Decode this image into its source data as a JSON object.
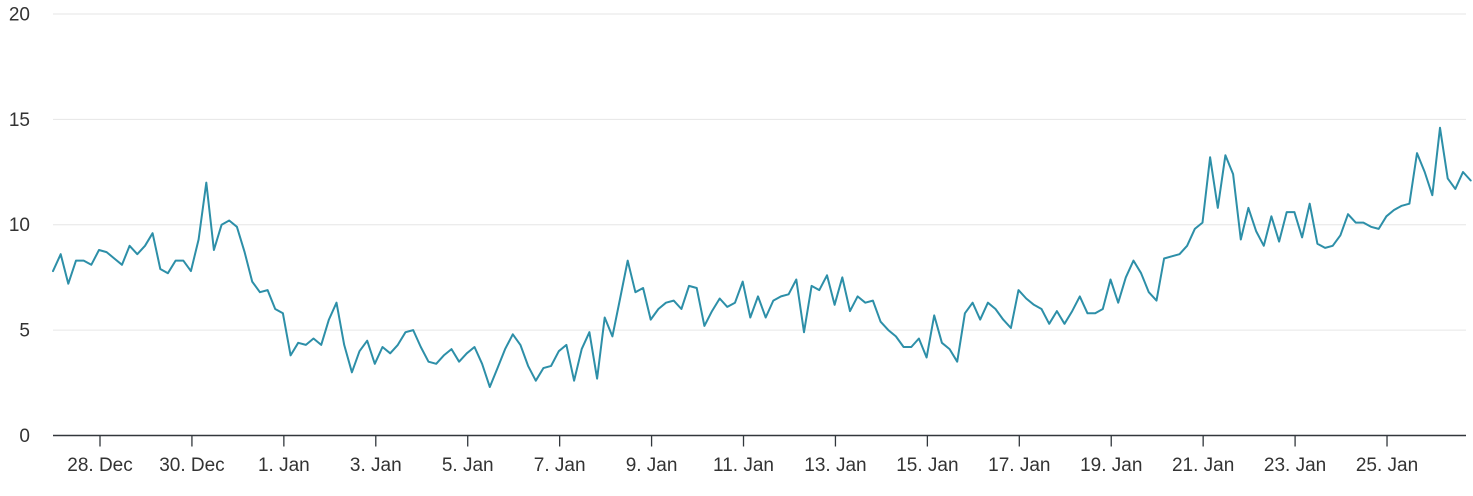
{
  "chart": {
    "background_color": "#ffffff",
    "line_color": "#2d8fa8",
    "grid_color": "#e6e6e6",
    "axis_line_color": "#32373c",
    "tick_color": "#32373c",
    "label_color": "#333333",
    "y_tick_labels": [
      "0",
      "5",
      "10",
      "15",
      "20"
    ],
    "x_tick_labels": [
      "28. Dec",
      "30. Dec",
      "1. Jan",
      "3. Jan",
      "5. Jan",
      "7. Jan",
      "9. Jan",
      "11. Jan",
      "13. Jan",
      "15. Jan",
      "17. Jan",
      "19. Jan",
      "21. Jan",
      "23. Jan",
      "25. Jan"
    ]
  },
  "chart_data": {
    "type": "line",
    "title": "",
    "xlabel": "",
    "ylabel": "",
    "ylim": [
      0,
      20
    ],
    "y_ticks": [
      0,
      5,
      10,
      15,
      20
    ],
    "x_tick_labels": [
      "28. Dec",
      "30. Dec",
      "1. Jan",
      "3. Jan",
      "5. Jan",
      "7. Jan",
      "9. Jan",
      "11. Jan",
      "13. Jan",
      "15. Jan",
      "17. Jan",
      "19. Jan",
      "21. Jan",
      "23. Jan",
      "25. Jan"
    ],
    "x_start": "27. Dec (approx. 00:00)",
    "x_end": "26. Jan (approx. 20:00)",
    "x_interval_hours": 4,
    "grid": "horizontal-only",
    "legend": "none",
    "series": [
      {
        "name": "series-1",
        "color": "#2d8fa8",
        "values": [
          7.8,
          8.6,
          7.2,
          8.3,
          8.3,
          8.1,
          8.8,
          8.7,
          8.4,
          8.1,
          9.0,
          8.6,
          9.0,
          9.6,
          7.9,
          7.7,
          8.3,
          8.3,
          7.8,
          9.3,
          12.0,
          8.8,
          10.0,
          10.2,
          9.9,
          8.7,
          7.3,
          6.8,
          6.9,
          6.0,
          5.8,
          3.8,
          4.4,
          4.3,
          4.6,
          4.3,
          5.5,
          6.3,
          4.3,
          3.0,
          4.0,
          4.5,
          3.4,
          4.2,
          3.9,
          4.3,
          4.9,
          5.0,
          4.2,
          3.5,
          3.4,
          3.8,
          4.1,
          3.5,
          3.9,
          4.2,
          3.4,
          2.3,
          3.2,
          4.1,
          4.8,
          4.3,
          3.3,
          2.6,
          3.2,
          3.3,
          4.0,
          4.3,
          2.6,
          4.1,
          4.9,
          2.7,
          5.6,
          4.7,
          6.5,
          8.3,
          6.8,
          7.0,
          5.5,
          6.0,
          6.3,
          6.4,
          6.0,
          7.1,
          7.0,
          5.2,
          5.9,
          6.5,
          6.1,
          6.3,
          7.3,
          5.6,
          6.6,
          5.6,
          6.4,
          6.6,
          6.7,
          7.4,
          4.9,
          7.1,
          6.9,
          7.6,
          6.2,
          7.5,
          5.9,
          6.6,
          6.3,
          6.4,
          5.4,
          5.0,
          4.7,
          4.2,
          4.2,
          4.6,
          3.7,
          5.7,
          4.4,
          4.1,
          3.5,
          5.8,
          6.3,
          5.5,
          6.3,
          6.0,
          5.5,
          5.1,
          6.9,
          6.5,
          6.2,
          6.0,
          5.3,
          5.9,
          5.3,
          5.9,
          6.6,
          5.8,
          5.8,
          6.0,
          7.4,
          6.3,
          7.5,
          8.3,
          7.7,
          6.8,
          6.4,
          8.4,
          8.5,
          8.6,
          9.0,
          9.8,
          10.1,
          13.2,
          10.8,
          13.3,
          12.4,
          9.3,
          10.8,
          9.7,
          9.0,
          10.4,
          9.2,
          10.6,
          10.6,
          9.4,
          11.0,
          9.1,
          8.9,
          9.0,
          9.5,
          10.5,
          10.1,
          10.1,
          9.9,
          9.8,
          10.4,
          10.7,
          10.9,
          11.0,
          13.4,
          12.5,
          11.4,
          14.6,
          12.2,
          11.7,
          12.5,
          12.1
        ]
      }
    ]
  }
}
